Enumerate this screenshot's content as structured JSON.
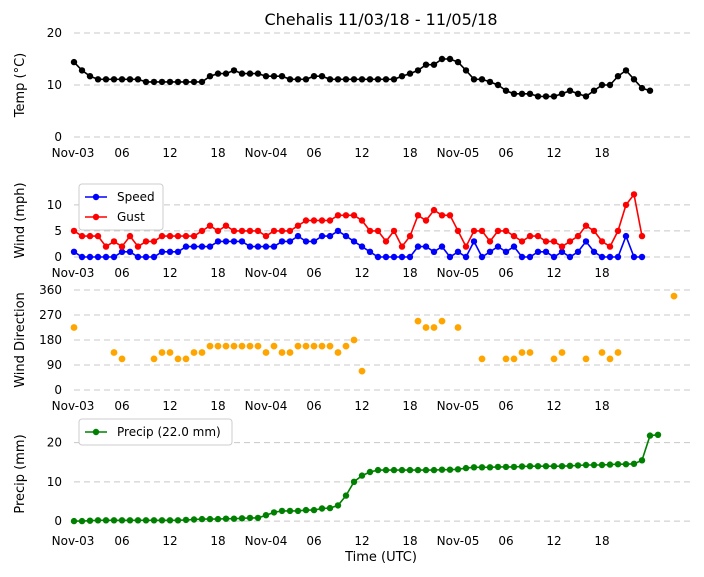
{
  "figure": {
    "title": "Chehalis 11/03/18 - 11/05/18",
    "xlabel": "Time (UTC)",
    "xtick_labels": [
      "Nov-03",
      "06",
      "12",
      "18",
      "Nov-04",
      "06",
      "12",
      "18",
      "Nov-05",
      "06",
      "12",
      "18"
    ]
  },
  "chart_data": [
    {
      "type": "line",
      "ylabel": "Temp (°C)",
      "ylim": [
        0,
        20
      ],
      "yticks": [
        0,
        10,
        20
      ],
      "grid": true,
      "x_start_hour": 0,
      "x_step_hours": 1,
      "series": [
        {
          "color": "#000000",
          "values": [
            14.4,
            12.8,
            11.7,
            11.1,
            11.1,
            11.1,
            11.1,
            11.1,
            11.1,
            10.6,
            10.6,
            10.6,
            10.6,
            10.6,
            10.6,
            10.6,
            10.6,
            11.7,
            12.2,
            12.2,
            12.8,
            12.2,
            12.2,
            12.2,
            11.7,
            11.7,
            11.7,
            11.1,
            11.1,
            11.1,
            11.7,
            11.7,
            11.1,
            11.1,
            11.1,
            11.1,
            11.1,
            11.1,
            11.1,
            11.1,
            11.1,
            11.7,
            12.2,
            12.8,
            13.9,
            13.9,
            15.0,
            15.0,
            14.4,
            12.8,
            11.1,
            11.1,
            10.6,
            10.0,
            8.9,
            8.3,
            8.3,
            8.3,
            7.8,
            7.8,
            7.8,
            8.3,
            8.9,
            8.3,
            7.8,
            8.9,
            10.0,
            10.0,
            11.7,
            12.8,
            11.1,
            9.4,
            8.9
          ]
        }
      ]
    },
    {
      "type": "line",
      "ylabel": "Wind (mph)",
      "ylim": [
        0,
        14
      ],
      "yticks": [
        0,
        5,
        10
      ],
      "grid": true,
      "legend": "top-left",
      "x_start_hour": 0,
      "x_step_hours": 1,
      "series": [
        {
          "name": "Speed",
          "color": "#0000ff",
          "values": [
            1,
            0,
            0,
            0,
            0,
            0,
            1,
            1,
            0,
            0,
            0,
            1,
            1,
            1,
            2,
            2,
            2,
            2,
            3,
            3,
            3,
            3,
            2,
            2,
            2,
            2,
            3,
            3,
            4,
            3,
            3,
            4,
            4,
            5,
            4,
            3,
            2,
            1,
            0,
            0,
            0,
            0,
            0,
            2,
            2,
            1,
            2,
            0,
            1,
            0,
            3,
            0,
            1,
            2,
            1,
            2,
            0,
            0,
            1,
            1,
            0,
            1,
            0,
            1,
            3,
            1,
            0,
            0,
            0,
            4,
            0,
            0
          ]
        },
        {
          "name": "Gust",
          "color": "#ff0000",
          "values": [
            5,
            4,
            4,
            4,
            2,
            3,
            2,
            4,
            2,
            3,
            3,
            4,
            4,
            4,
            4,
            4,
            5,
            6,
            5,
            6,
            5,
            5,
            5,
            5,
            4,
            5,
            5,
            5,
            6,
            7,
            7,
            7,
            7,
            8,
            8,
            8,
            7,
            5,
            5,
            3,
            5,
            2,
            4,
            8,
            7,
            9,
            8,
            8,
            5,
            2,
            5,
            5,
            3,
            5,
            5,
            4,
            3,
            4,
            4,
            3,
            3,
            2,
            3,
            4,
            6,
            5,
            3,
            2,
            5,
            10,
            12,
            4
          ]
        }
      ]
    },
    {
      "type": "scatter",
      "ylabel": "Wind Direction",
      "ylim": [
        0,
        360
      ],
      "yticks": [
        0,
        90,
        180,
        270,
        360
      ],
      "grid": true,
      "color": "#ffa500",
      "points": [
        {
          "h": 0,
          "v": 225
        },
        {
          "h": 5,
          "v": 135
        },
        {
          "h": 6,
          "v": 112
        },
        {
          "h": 10,
          "v": 112
        },
        {
          "h": 11,
          "v": 135
        },
        {
          "h": 12,
          "v": 135
        },
        {
          "h": 13,
          "v": 112
        },
        {
          "h": 14,
          "v": 112
        },
        {
          "h": 15,
          "v": 135
        },
        {
          "h": 16,
          "v": 135
        },
        {
          "h": 17,
          "v": 158
        },
        {
          "h": 18,
          "v": 158
        },
        {
          "h": 19,
          "v": 158
        },
        {
          "h": 20,
          "v": 158
        },
        {
          "h": 21,
          "v": 158
        },
        {
          "h": 22,
          "v": 158
        },
        {
          "h": 23,
          "v": 158
        },
        {
          "h": 24,
          "v": 135
        },
        {
          "h": 25,
          "v": 158
        },
        {
          "h": 26,
          "v": 135
        },
        {
          "h": 27,
          "v": 135
        },
        {
          "h": 28,
          "v": 158
        },
        {
          "h": 29,
          "v": 158
        },
        {
          "h": 30,
          "v": 158
        },
        {
          "h": 31,
          "v": 158
        },
        {
          "h": 32,
          "v": 158
        },
        {
          "h": 33,
          "v": 135
        },
        {
          "h": 34,
          "v": 158
        },
        {
          "h": 35,
          "v": 180
        },
        {
          "h": 36,
          "v": 68
        },
        {
          "h": 43,
          "v": 248
        },
        {
          "h": 44,
          "v": 225
        },
        {
          "h": 45,
          "v": 225
        },
        {
          "h": 46,
          "v": 248
        },
        {
          "h": 48,
          "v": 225
        },
        {
          "h": 51,
          "v": 112
        },
        {
          "h": 54,
          "v": 112
        },
        {
          "h": 55,
          "v": 112
        },
        {
          "h": 56,
          "v": 135
        },
        {
          "h": 57,
          "v": 135
        },
        {
          "h": 60,
          "v": 112
        },
        {
          "h": 61,
          "v": 135
        },
        {
          "h": 64,
          "v": 112
        },
        {
          "h": 66,
          "v": 135
        },
        {
          "h": 67,
          "v": 112
        },
        {
          "h": 68,
          "v": 135
        },
        {
          "h": 75,
          "v": 338
        }
      ]
    },
    {
      "type": "line",
      "ylabel": "Precip (mm)",
      "ylim": [
        -1,
        25
      ],
      "yticks": [
        0,
        10,
        20
      ],
      "grid": true,
      "legend": "top-left",
      "x_start_hour": 0,
      "x_step_hours": 1,
      "series": [
        {
          "name": "Precip (22.0 mm)",
          "color": "#008000",
          "values": [
            0,
            0,
            0.1,
            0.2,
            0.2,
            0.2,
            0.2,
            0.2,
            0.2,
            0.2,
            0.2,
            0.2,
            0.2,
            0.2,
            0.3,
            0.4,
            0.5,
            0.5,
            0.5,
            0.6,
            0.6,
            0.7,
            0.8,
            0.8,
            1.5,
            2.2,
            2.6,
            2.6,
            2.6,
            2.8,
            2.8,
            3.2,
            3.3,
            4.0,
            6.5,
            10.0,
            11.6,
            12.5,
            13.0,
            13.0,
            13.0,
            13.0,
            13.0,
            13.0,
            13.0,
            13.0,
            13.1,
            13.1,
            13.2,
            13.5,
            13.7,
            13.7,
            13.7,
            13.8,
            13.8,
            13.8,
            13.9,
            14.0,
            14.0,
            14.0,
            14.0,
            14.0,
            14.1,
            14.2,
            14.3,
            14.3,
            14.3,
            14.4,
            14.5,
            14.5,
            14.6,
            15.5,
            21.8,
            22.0
          ]
        }
      ]
    }
  ]
}
